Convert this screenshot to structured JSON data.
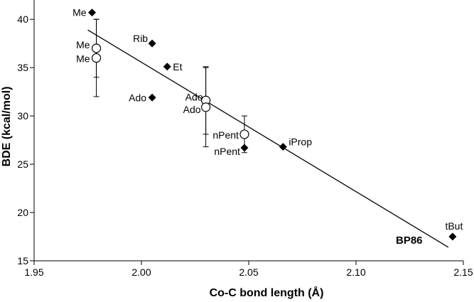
{
  "chart_data": {
    "type": "scatter",
    "title": "",
    "xlabel": "Co-C bond length (Å)",
    "ylabel": "BDE (kcal/mol)",
    "xlim": [
      1.95,
      2.15
    ],
    "ylim": [
      15,
      42
    ],
    "x_ticks": [
      "1.95",
      "2.00",
      "2.05",
      "2.10",
      "2.15"
    ],
    "x_tick_values": [
      1.95,
      2.0,
      2.05,
      2.1,
      2.15
    ],
    "y_ticks": [
      "15",
      "20",
      "25",
      "30",
      "35",
      "40"
    ],
    "y_tick_values": [
      15,
      20,
      25,
      30,
      35,
      40
    ],
    "grid": false,
    "annotation": "BP86",
    "series": [
      {
        "marker": "filled-diamond",
        "points": [
          {
            "label": "Me",
            "x": 1.977,
            "y": 40.7
          },
          {
            "label": "Rib",
            "x": 2.005,
            "y": 37.5
          },
          {
            "label": "Et",
            "x": 2.012,
            "y": 35.1
          },
          {
            "label": "Ado",
            "x": 2.005,
            "y": 31.9
          },
          {
            "label": "nPent",
            "x": 2.048,
            "y": 26.7
          },
          {
            "label": "iProp",
            "x": 2.066,
            "y": 26.8
          },
          {
            "label": "tBut",
            "x": 2.145,
            "y": 17.5
          }
        ]
      },
      {
        "marker": "open-circle",
        "points": [
          {
            "label": "Me",
            "x": 1.979,
            "y": 37.0,
            "err": 3.0
          },
          {
            "label": "Me",
            "x": 1.979,
            "y": 36.0,
            "err": 4.0
          },
          {
            "label": "Ado",
            "x": 2.03,
            "y": 31.6,
            "err": 3.5
          },
          {
            "label": "Ado",
            "x": 2.03,
            "y": 30.9,
            "err": 4.1
          },
          {
            "label": "nPent",
            "x": 2.048,
            "y": 28.1,
            "err": 1.9
          }
        ]
      }
    ],
    "fit_line": {
      "x": [
        1.975,
        2.143
      ],
      "y": [
        38.9,
        16.4
      ]
    }
  }
}
